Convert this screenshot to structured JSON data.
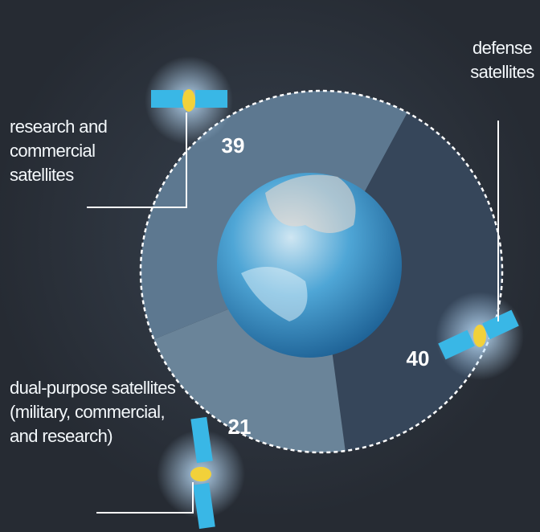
{
  "chart_data": {
    "type": "pie",
    "categories": [
      "research and commercial satellites",
      "defense satellites",
      "dual-purpose satellites (military, commercial, and research)"
    ],
    "values": [
      39,
      40,
      21
    ],
    "colors": [
      "#5d7890",
      "#36465a",
      "#6a8499"
    ]
  }
}
